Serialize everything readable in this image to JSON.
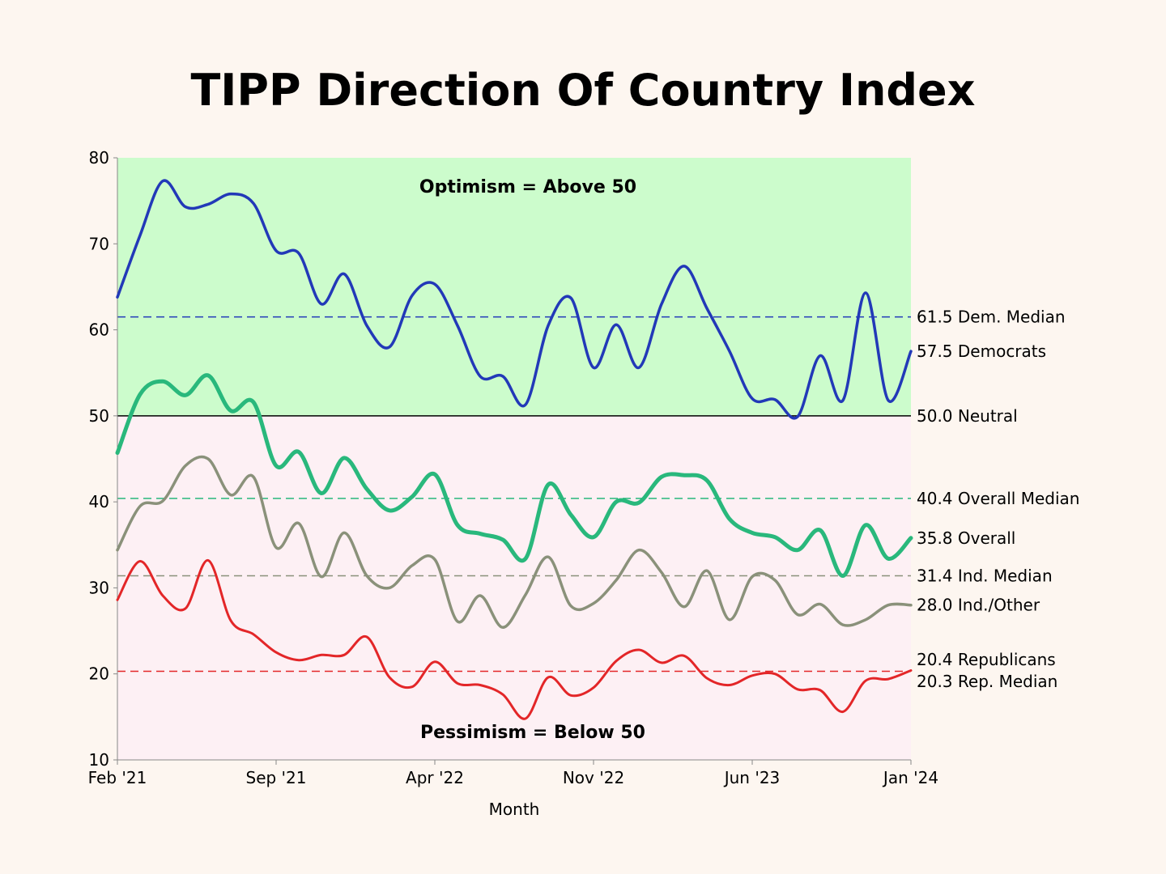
{
  "chart_data": {
    "type": "line",
    "title": "TIPP Direction Of Country Index",
    "xlabel": "Month",
    "ylabel": "",
    "ylim": [
      10,
      80
    ],
    "yticks": [
      10,
      20,
      30,
      40,
      50,
      60,
      70,
      80
    ],
    "x_ticks": [
      "Feb '21",
      "Sep '21",
      "Apr '22",
      "Nov '22",
      "Jun '23",
      "Jan '24"
    ],
    "x_tick_index": [
      0,
      7,
      14,
      21,
      28,
      35
    ],
    "regions": [
      {
        "name": "optimism",
        "from": 50,
        "to": 80,
        "label": "Optimism = Above 50",
        "color": "#ccfccc"
      },
      {
        "name": "pessimism",
        "from": 10,
        "to": 50,
        "label": "Pessimism = Below 50",
        "color": "#fdf0f4"
      }
    ],
    "series": [
      {
        "name": "Democrats",
        "color": "#2239b8",
        "width": 3.5,
        "values": [
          63.8,
          71,
          77.3,
          74.3,
          74.6,
          75.8,
          74.7,
          69.2,
          68.9,
          63,
          66.5,
          60.5,
          58,
          64,
          65.3,
          60.5,
          54.6,
          54.6,
          51.3,
          60.5,
          63.7,
          55.6,
          60.6,
          55.6,
          63,
          67.4,
          62.5,
          57.5,
          52,
          51.9,
          49.9,
          57,
          51.8,
          64.3,
          51.8,
          57.5
        ],
        "end_label": "57.5 Democrats"
      },
      {
        "name": "Overall",
        "color": "#29b87c",
        "width": 5,
        "values": [
          45.7,
          52.5,
          54,
          52.4,
          54.7,
          50.6,
          51.6,
          44.2,
          45.8,
          41,
          45.1,
          41.5,
          39,
          40.6,
          43.2,
          37.3,
          36.3,
          35.6,
          33.4,
          42,
          38.5,
          35.9,
          40,
          39.9,
          42.9,
          43.1,
          42.5,
          38,
          36.4,
          35.9,
          34.4,
          36.7,
          31.4,
          37.3,
          33.4,
          35.8
        ],
        "end_label": "35.8 Overall"
      },
      {
        "name": "Ind./Other",
        "color": "#8a917a",
        "width": 3.5,
        "values": [
          34.4,
          39.5,
          40.1,
          44.2,
          45,
          40.8,
          42.9,
          34.7,
          37.5,
          31.3,
          36.4,
          31.4,
          30,
          32.6,
          33.3,
          26.1,
          29.1,
          25.4,
          29.2,
          33.6,
          27.9,
          28.2,
          30.9,
          34.4,
          31.8,
          27.8,
          32,
          26.3,
          31.3,
          30.9,
          26.9,
          28.1,
          25.7,
          26.3,
          28,
          28
        ],
        "end_label": "28.0 Ind./Other"
      },
      {
        "name": "Republicans",
        "color": "#e32628",
        "width": 3,
        "values": [
          28.6,
          33.1,
          29.1,
          27.6,
          33.2,
          26.2,
          24.6,
          22.5,
          21.6,
          22.2,
          22.2,
          24.3,
          19.6,
          18.5,
          21.4,
          18.9,
          18.7,
          17.6,
          14.8,
          19.6,
          17.5,
          18.4,
          21.5,
          22.8,
          21.3,
          22.1,
          19.5,
          18.7,
          19.8,
          20,
          18.2,
          18.1,
          15.6,
          19.2,
          19.4,
          20.4
        ],
        "end_label": "20.4 Republicans"
      }
    ],
    "reference_lines": [
      {
        "name": "Dem. Median",
        "value": 61.5,
        "color": "#2239b8",
        "style": "dashed",
        "label": "61.5 Dem. Median"
      },
      {
        "name": "Neutral",
        "value": 50.0,
        "color": "#000000",
        "style": "solid",
        "label": "50.0 Neutral"
      },
      {
        "name": "Overall Median",
        "value": 40.4,
        "color": "#29b87c",
        "style": "dashed",
        "label": "40.4 Overall Median"
      },
      {
        "name": "Ind. Median",
        "value": 31.4,
        "color": "#8a917a",
        "style": "dashed",
        "label": "31.4 Ind. Median"
      },
      {
        "name": "Rep. Median",
        "value": 20.3,
        "color": "#e32628",
        "style": "dashed",
        "label": "20.3 Rep. Median"
      }
    ]
  }
}
